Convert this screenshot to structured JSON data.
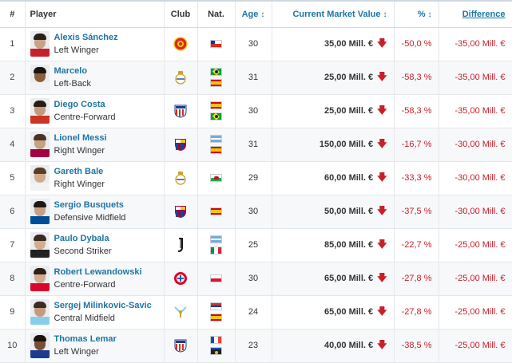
{
  "headers": {
    "rank": "#",
    "player": "Player",
    "club": "Club",
    "nat": "Nat.",
    "age": "Age",
    "market_value": "Current Market Value",
    "percent": "%",
    "difference": "Difference",
    "sort_icon": "sort-icon"
  },
  "rows": [
    {
      "rank": "1",
      "name": "Alexis Sánchez",
      "position": "Left Winger",
      "club": "manchester-united-crest",
      "nat": [
        "chile-flag"
      ],
      "age": "30",
      "value": "35,00 Mill. €",
      "percent": "-50,0 %",
      "difference": "-35,00 Mill. €"
    },
    {
      "rank": "2",
      "name": "Marcelo",
      "position": "Left-Back",
      "club": "real-madrid-crest",
      "nat": [
        "brazil-flag",
        "spain-flag"
      ],
      "age": "31",
      "value": "25,00 Mill. €",
      "percent": "-58,3 %",
      "difference": "-35,00 Mill. €"
    },
    {
      "rank": "3",
      "name": "Diego Costa",
      "position": "Centre-Forward",
      "club": "atletico-madrid-crest",
      "nat": [
        "spain-flag",
        "brazil-flag"
      ],
      "age": "30",
      "value": "25,00 Mill. €",
      "percent": "-58,3 %",
      "difference": "-35,00 Mill. €"
    },
    {
      "rank": "4",
      "name": "Lionel Messi",
      "position": "Right Winger",
      "club": "fc-barcelona-crest",
      "nat": [
        "argentina-flag",
        "spain-flag"
      ],
      "age": "31",
      "value": "150,00 Mill. €",
      "percent": "-16,7 %",
      "difference": "-30,00 Mill. €"
    },
    {
      "rank": "5",
      "name": "Gareth Bale",
      "position": "Right Winger",
      "club": "real-madrid-crest",
      "nat": [
        "wales-flag"
      ],
      "age": "29",
      "value": "60,00 Mill. €",
      "percent": "-33,3 %",
      "difference": "-30,00 Mill. €"
    },
    {
      "rank": "6",
      "name": "Sergio Busquets",
      "position": "Defensive Midfield",
      "club": "fc-barcelona-crest",
      "nat": [
        "spain-flag"
      ],
      "age": "30",
      "value": "50,00 Mill. €",
      "percent": "-37,5 %",
      "difference": "-30,00 Mill. €"
    },
    {
      "rank": "7",
      "name": "Paulo Dybala",
      "position": "Second Striker",
      "club": "juventus-crest",
      "nat": [
        "argentina-flag",
        "italy-flag"
      ],
      "age": "25",
      "value": "85,00 Mill. €",
      "percent": "-22,7 %",
      "difference": "-25,00 Mill. €"
    },
    {
      "rank": "8",
      "name": "Robert Lewandowski",
      "position": "Centre-Forward",
      "club": "bayern-munich-crest",
      "nat": [
        "poland-flag"
      ],
      "age": "30",
      "value": "65,00 Mill. €",
      "percent": "-27,8 %",
      "difference": "-25,00 Mill. €"
    },
    {
      "rank": "9",
      "name": "Sergej Milinkovic-Savic",
      "position": "Central Midfield",
      "club": "lazio-crest",
      "nat": [
        "serbia-flag",
        "spain-flag"
      ],
      "age": "24",
      "value": "65,00 Mill. €",
      "percent": "-27,8 %",
      "difference": "-25,00 Mill. €"
    },
    {
      "rank": "10",
      "name": "Thomas Lemar",
      "position": "Left Winger",
      "club": "atletico-madrid-crest",
      "nat": [
        "france-flag",
        "guadeloupe-flag"
      ],
      "age": "23",
      "value": "40,00 Mill. €",
      "percent": "-38,5 %",
      "difference": "-25,00 Mill. €"
    }
  ],
  "colors": {
    "link": "#1d75a3",
    "negative": "#c8202a",
    "row_alt": "#f7f8fa",
    "border": "#e4e7ea"
  }
}
